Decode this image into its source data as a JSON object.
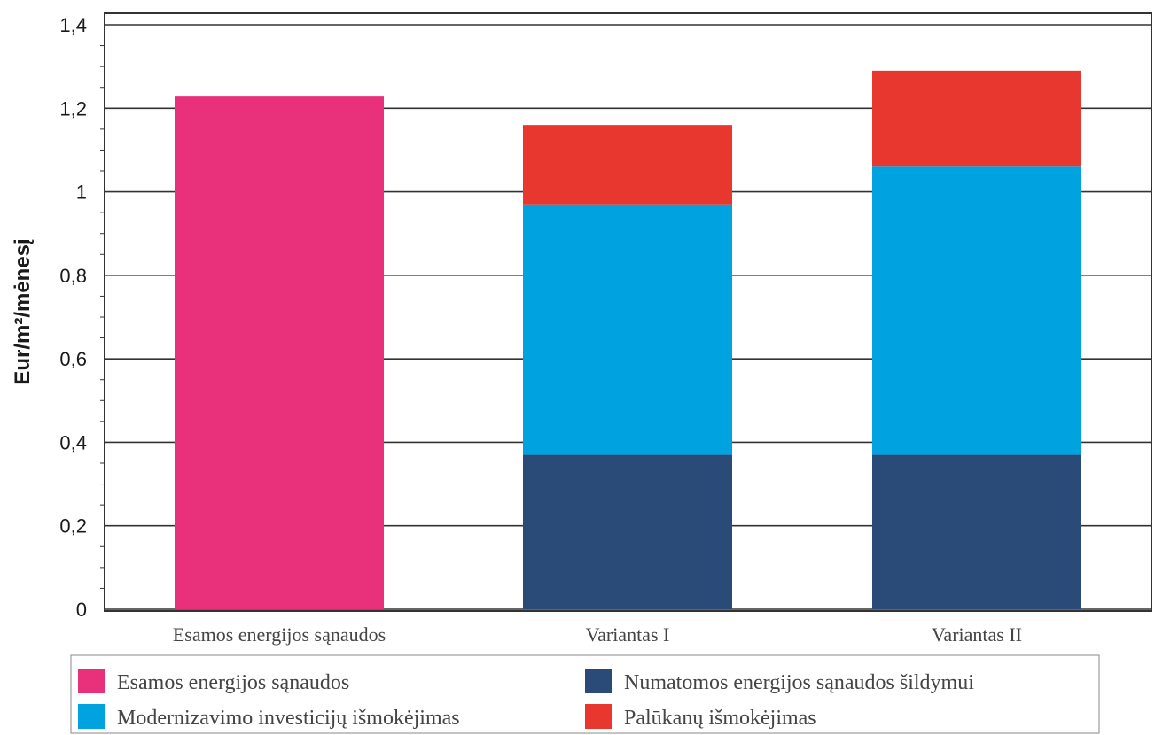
{
  "chart_data": {
    "type": "bar",
    "stacked": true,
    "ylabel": "Eur/m²/mėnesį",
    "ylim": [
      0,
      1.4
    ],
    "yticks": [
      "0",
      "0,2",
      "0,4",
      "0,6",
      "0,8",
      "1",
      "1,2",
      "1,4"
    ],
    "categories": [
      "Esamos energijos sąnaudos",
      "Variantas I",
      "Variantas II"
    ],
    "series": [
      {
        "name": "Esamos energijos sąnaudos",
        "color": "#e8317a",
        "values": [
          1.23,
          0,
          0
        ]
      },
      {
        "name": "Numatomos energijos sąnaudos šildymui",
        "color": "#2a4a78",
        "values": [
          0,
          0.37,
          0.37
        ]
      },
      {
        "name": "Modernizavimo investicijų išmokėjimas",
        "color": "#00a3e0",
        "values": [
          0,
          0.6,
          0.69
        ]
      },
      {
        "name": "Palūkanų išmokėjimas",
        "color": "#e8372f",
        "values": [
          0,
          0.19,
          0.23
        ]
      }
    ],
    "grid": true,
    "legend_position": "bottom"
  }
}
